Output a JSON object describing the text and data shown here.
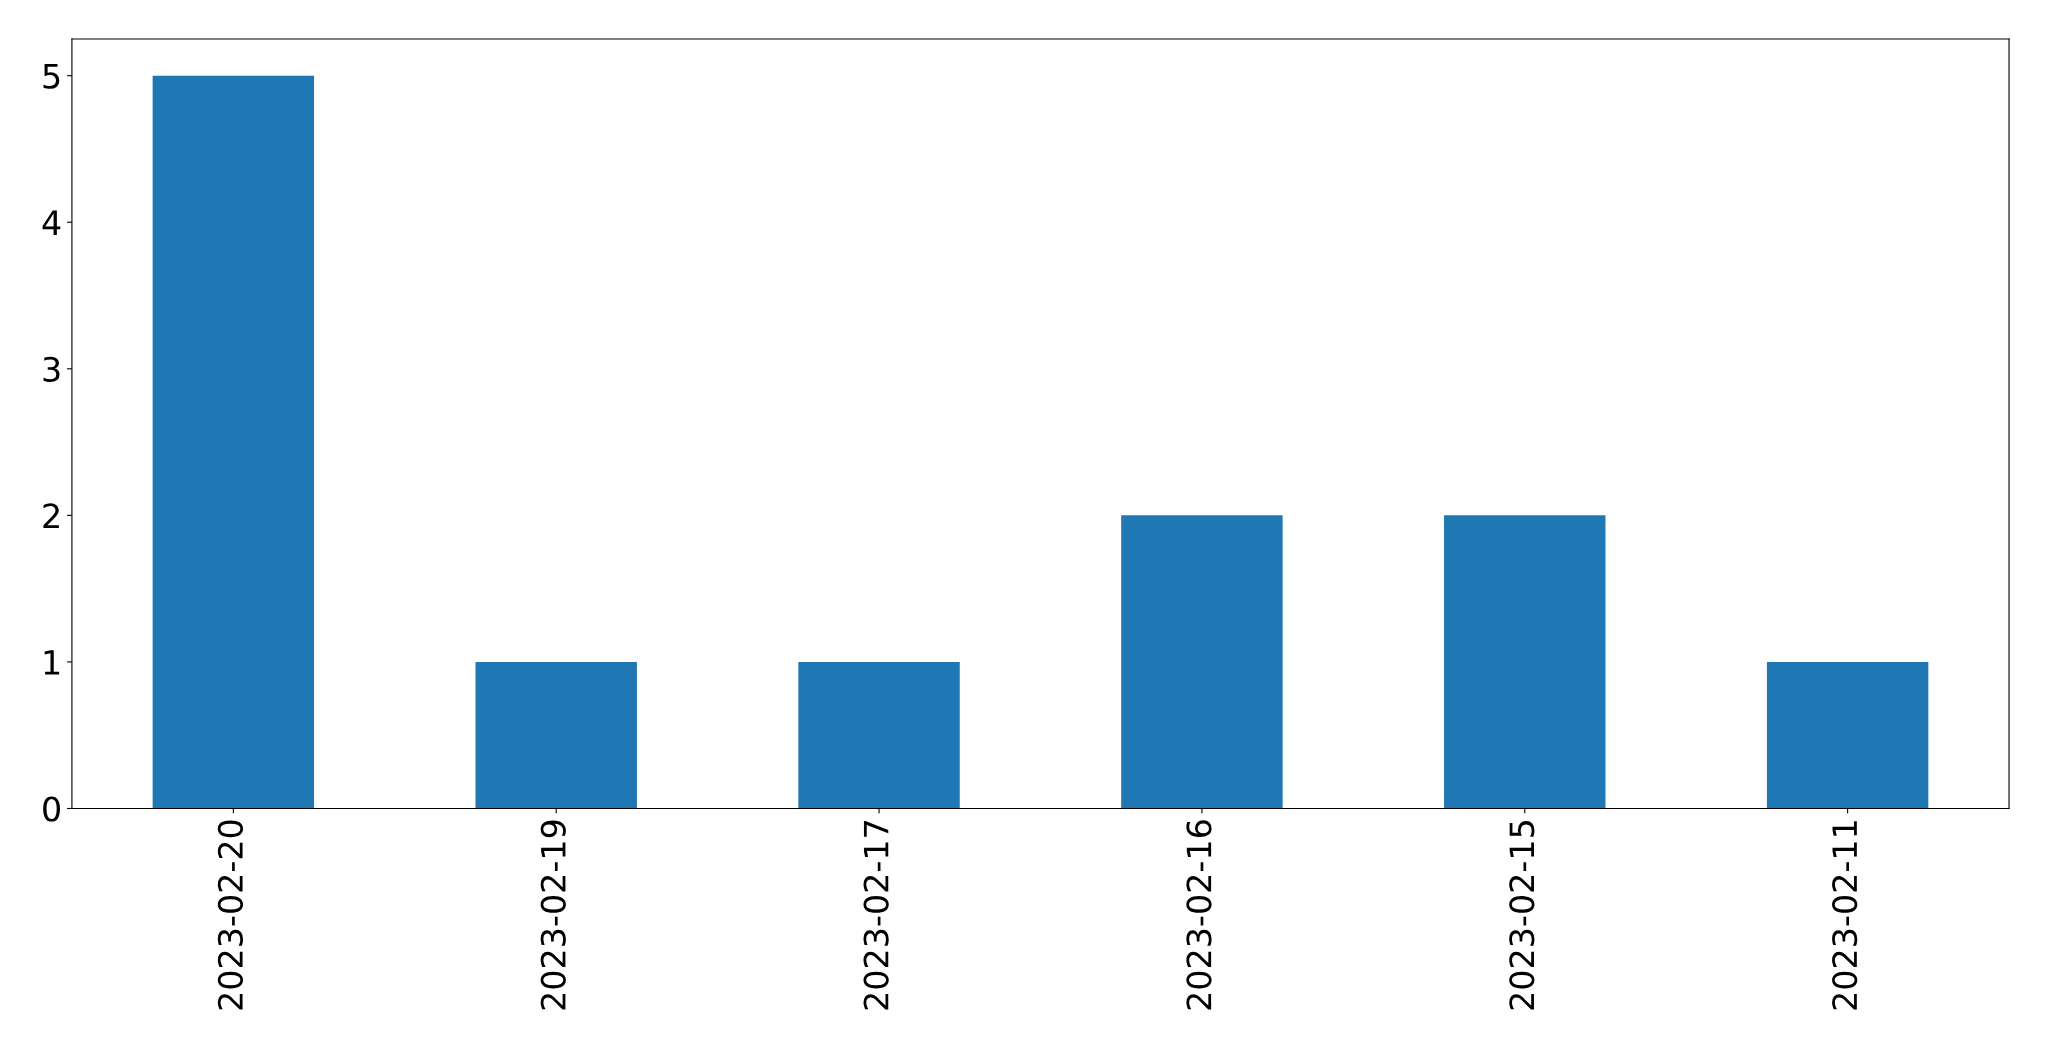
{
  "chart_data": {
    "type": "bar",
    "categories": [
      "2023-02-20",
      "2023-02-19",
      "2023-02-17",
      "2023-02-16",
      "2023-02-15",
      "2023-02-11"
    ],
    "values": [
      5,
      1,
      1,
      2,
      2,
      1
    ],
    "color": "#1f77b4",
    "ylim": [
      0,
      5.25
    ],
    "yticks": [
      0,
      1,
      2,
      3,
      4,
      5
    ],
    "grid": false,
    "legend": false
  }
}
